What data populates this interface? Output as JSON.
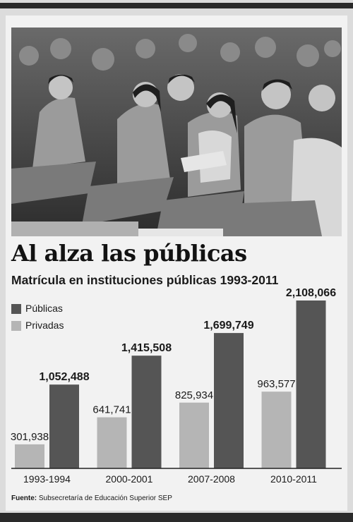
{
  "headline": "Al alza las públicas",
  "colors": {
    "publicas": "#555555",
    "privadas": "#b5b5b5",
    "text": "#1a1a1a"
  },
  "photo": {
    "icon": "photo-students-audience"
  },
  "source": {
    "label": "Fuente:",
    "text": "Subsecretaría de Educación Superior SEP"
  },
  "chart_data": {
    "type": "bar",
    "title": "Matrícula en instituciones públicas 1993-2011",
    "categories": [
      "1993-1994",
      "2000-2001",
      "2007-2008",
      "2010-2011"
    ],
    "series": [
      {
        "name": "Públicas",
        "values": [
          1052488,
          1415508,
          1699749,
          2108066
        ],
        "labels": [
          "1,052,488",
          "1,415,508",
          "1,699,749",
          "2,108,066"
        ]
      },
      {
        "name": "Privadas",
        "values": [
          301938,
          641741,
          825934,
          963577
        ],
        "labels": [
          "301,938",
          "641,741",
          "825,934",
          "963,577"
        ]
      }
    ],
    "legend": "top-left",
    "grid": false,
    "ylim": [
      0,
      2108066
    ]
  }
}
